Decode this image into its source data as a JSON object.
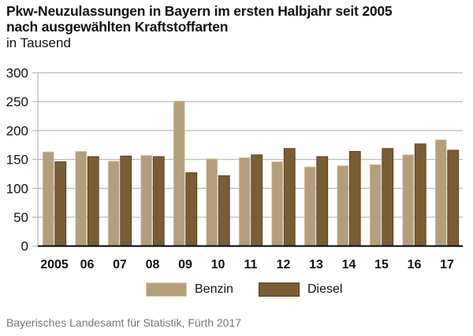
{
  "header": {
    "title_line1": "Pkw-Neuzulassungen in Bayern im ersten Halbjahr seit 2005",
    "title_line2": "nach ausgewählten Kraftstoffarten",
    "subtitle": "in Tausend"
  },
  "colors": {
    "benzin": "#b59e7c",
    "benzin_edge": "#d8c9ad",
    "diesel": "#7a5c35",
    "diesel_edge": "#4f3a1f",
    "grid": "#bdbdbd",
    "axis": "#111111"
  },
  "chart_data": {
    "type": "bar",
    "title": "Pkw-Neuzulassungen in Bayern im ersten Halbjahr seit 2005 nach ausgewählten Kraftstoffarten",
    "ylabel": "in Tausend",
    "xlabel": "",
    "categories": [
      "2005",
      "06",
      "07",
      "08",
      "09",
      "10",
      "11",
      "12",
      "13",
      "14",
      "15",
      "16",
      "17"
    ],
    "series": [
      {
        "name": "Benzin",
        "values": [
          163,
          164,
          147,
          157,
          251,
          151,
          153,
          146,
          137,
          139,
          141,
          158,
          184
        ]
      },
      {
        "name": "Diesel",
        "values": [
          146,
          155,
          156,
          155,
          127,
          122,
          158,
          169,
          155,
          164,
          169,
          177,
          166
        ]
      }
    ],
    "ylim": [
      0,
      300
    ],
    "yticks": [
      "0",
      "50",
      "100",
      "150",
      "200",
      "250",
      "300"
    ],
    "grid": true,
    "legend_position": "bottom"
  },
  "legend": {
    "items": [
      {
        "label": "Benzin"
      },
      {
        "label": "Diesel"
      }
    ]
  },
  "footer": {
    "source": "Bayerisches Landesamt für Statistik, Fürth 2017"
  }
}
